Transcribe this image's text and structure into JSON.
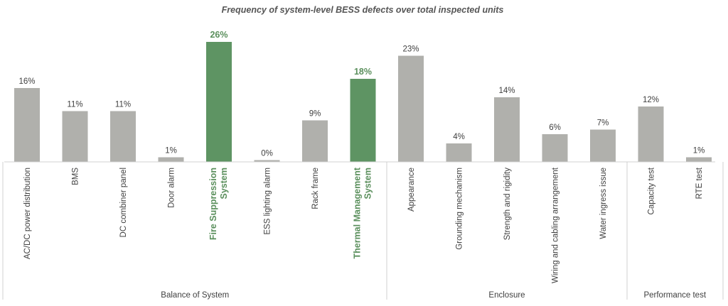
{
  "chart_data": {
    "type": "bar",
    "title": "Frequency of system-level BESS defects over total inspected units",
    "xlabel": "",
    "ylabel": "",
    "ylim": [
      0,
      30
    ],
    "grid": false,
    "legend": "none",
    "value_suffix": "%",
    "colors": {
      "default": "#b0b0ac",
      "highlight": "#5e9463",
      "highlight_text": "#5a8f5c"
    },
    "categories": [
      {
        "label": "AC/DC power distribution",
        "value": 16,
        "value_label": "16%",
        "group": "Balance of System",
        "highlight": false
      },
      {
        "label": "BMS",
        "value": 11,
        "value_label": "11%",
        "group": "Balance of System",
        "highlight": false
      },
      {
        "label": "DC combiner panel",
        "value": 11,
        "value_label": "11%",
        "group": "Balance of System",
        "highlight": false
      },
      {
        "label": "Door alarm",
        "value": 1,
        "value_label": "1%",
        "group": "Balance of System",
        "highlight": false
      },
      {
        "label": "Fire Suppression System",
        "lines": [
          "Fire Suppression",
          "System"
        ],
        "value": 26,
        "value_label": "26%",
        "group": "Balance of System",
        "highlight": true
      },
      {
        "label": "ESS lighting alarm",
        "value": 0,
        "value_label": "0%",
        "group": "Balance of System",
        "highlight": false
      },
      {
        "label": "Rack frame",
        "value": 9,
        "value_label": "9%",
        "group": "Balance of System",
        "highlight": false
      },
      {
        "label": "Thermal Management System",
        "lines": [
          "Thermal Management",
          "System"
        ],
        "value": 18,
        "value_label": "18%",
        "group": "Balance of System",
        "highlight": true
      },
      {
        "label": "Appearance",
        "value": 23,
        "value_label": "23%",
        "group": "Enclosure",
        "highlight": false
      },
      {
        "label": "Grounding mechanism",
        "value": 4,
        "value_label": "4%",
        "group": "Enclosure",
        "highlight": false
      },
      {
        "label": "Strength and rigidity",
        "value": 14,
        "value_label": "14%",
        "group": "Enclosure",
        "highlight": false
      },
      {
        "label": "Wiring and cabling arrangement",
        "value": 6,
        "value_label": "6%",
        "group": "Enclosure",
        "highlight": false
      },
      {
        "label": "Water ingress issue",
        "value": 7,
        "value_label": "7%",
        "group": "Enclosure",
        "highlight": false
      },
      {
        "label": "Capacity test",
        "value": 12,
        "value_label": "12%",
        "group": "Performance test",
        "highlight": false
      },
      {
        "label": "RTE test",
        "value": 1,
        "value_label": "1%",
        "group": "Performance test",
        "highlight": false
      }
    ],
    "groups": [
      "Balance of System",
      "Enclosure",
      "Performance test"
    ]
  }
}
